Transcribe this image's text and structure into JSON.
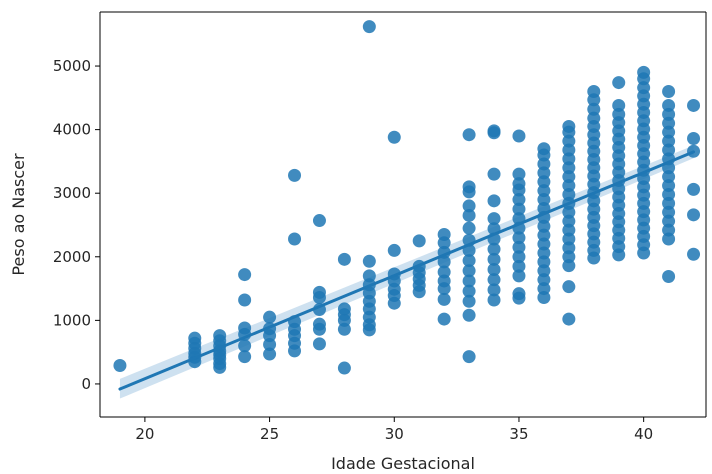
{
  "chart_data": {
    "type": "scatter",
    "title": "",
    "xlabel": "Idade Gestacional",
    "ylabel": "Peso ao Nascer",
    "xlim": [
      18.2,
      42.5
    ],
    "ylim": [
      -520,
      5850
    ],
    "xticks": [
      20,
      25,
      30,
      35,
      40
    ],
    "yticks": [
      0,
      1000,
      2000,
      3000,
      4000,
      5000
    ],
    "grid": false,
    "legend": "none",
    "point_color": "#1f77b4",
    "line_color": "#1f77b4",
    "band_color": "#a6c8e4",
    "regression": {
      "x": [
        19,
        42
      ],
      "y": [
        -80,
        3650
      ],
      "ci_low_at_min": -230,
      "ci_high_at_min": 80,
      "ci_low_at_max": 3550,
      "ci_high_at_max": 3750
    },
    "points": [
      [
        19,
        290
      ],
      [
        22,
        350
      ],
      [
        22,
        420
      ],
      [
        22,
        480
      ],
      [
        22,
        560
      ],
      [
        22,
        640
      ],
      [
        22,
        720
      ],
      [
        23,
        260
      ],
      [
        23,
        320
      ],
      [
        23,
        400
      ],
      [
        23,
        460
      ],
      [
        23,
        520
      ],
      [
        23,
        600
      ],
      [
        23,
        680
      ],
      [
        23,
        760
      ],
      [
        24,
        430
      ],
      [
        24,
        600
      ],
      [
        24,
        780
      ],
      [
        24,
        880
      ],
      [
        24,
        1320
      ],
      [
        24,
        1720
      ],
      [
        25,
        470
      ],
      [
        25,
        620
      ],
      [
        25,
        760
      ],
      [
        25,
        870
      ],
      [
        25,
        1050
      ],
      [
        26,
        520
      ],
      [
        26,
        640
      ],
      [
        26,
        760
      ],
      [
        26,
        860
      ],
      [
        26,
        980
      ],
      [
        26,
        2280
      ],
      [
        26,
        3280
      ],
      [
        27,
        630
      ],
      [
        27,
        860
      ],
      [
        27,
        940
      ],
      [
        27,
        1170
      ],
      [
        27,
        1360
      ],
      [
        27,
        1440
      ],
      [
        27,
        2570
      ],
      [
        28,
        250
      ],
      [
        28,
        860
      ],
      [
        28,
        1000
      ],
      [
        28,
        1090
      ],
      [
        28,
        1180
      ],
      [
        28,
        1960
      ],
      [
        29,
        850
      ],
      [
        29,
        930
      ],
      [
        29,
        1050
      ],
      [
        29,
        1180
      ],
      [
        29,
        1300
      ],
      [
        29,
        1430
      ],
      [
        29,
        1560
      ],
      [
        29,
        1700
      ],
      [
        29,
        1930
      ],
      [
        29,
        5620
      ],
      [
        30,
        1270
      ],
      [
        30,
        1390
      ],
      [
        30,
        1490
      ],
      [
        30,
        1620
      ],
      [
        30,
        1730
      ],
      [
        30,
        2100
      ],
      [
        30,
        3880
      ],
      [
        31,
        1450
      ],
      [
        31,
        1550
      ],
      [
        31,
        1650
      ],
      [
        31,
        1750
      ],
      [
        31,
        1850
      ],
      [
        31,
        2250
      ],
      [
        32,
        1020
      ],
      [
        32,
        1330
      ],
      [
        32,
        1500
      ],
      [
        32,
        1620
      ],
      [
        32,
        1760
      ],
      [
        32,
        1920
      ],
      [
        32,
        2070
      ],
      [
        32,
        2220
      ],
      [
        32,
        2350
      ],
      [
        33,
        430
      ],
      [
        33,
        1080
      ],
      [
        33,
        1300
      ],
      [
        33,
        1460
      ],
      [
        33,
        1620
      ],
      [
        33,
        1780
      ],
      [
        33,
        1940
      ],
      [
        33,
        2100
      ],
      [
        33,
        2260
      ],
      [
        33,
        2450
      ],
      [
        33,
        2650
      ],
      [
        33,
        2800
      ],
      [
        33,
        3020
      ],
      [
        33,
        3100
      ],
      [
        33,
        3920
      ],
      [
        34,
        1320
      ],
      [
        34,
        1480
      ],
      [
        34,
        1640
      ],
      [
        34,
        1800
      ],
      [
        34,
        1960
      ],
      [
        34,
        2120
      ],
      [
        34,
        2280
      ],
      [
        34,
        2440
      ],
      [
        34,
        2600
      ],
      [
        34,
        2880
      ],
      [
        34,
        3300
      ],
      [
        34,
        3950
      ],
      [
        34,
        3980
      ],
      [
        35,
        1350
      ],
      [
        35,
        1420
      ],
      [
        35,
        1700
      ],
      [
        35,
        1850
      ],
      [
        35,
        2000
      ],
      [
        35,
        2150
      ],
      [
        35,
        2300
      ],
      [
        35,
        2450
      ],
      [
        35,
        2600
      ],
      [
        35,
        2750
      ],
      [
        35,
        2900
      ],
      [
        35,
        3050
      ],
      [
        35,
        3150
      ],
      [
        35,
        3300
      ],
      [
        35,
        3900
      ],
      [
        36,
        1360
      ],
      [
        36,
        1500
      ],
      [
        36,
        1640
      ],
      [
        36,
        1780
      ],
      [
        36,
        1920
      ],
      [
        36,
        2060
      ],
      [
        36,
        2200
      ],
      [
        36,
        2340
      ],
      [
        36,
        2480
      ],
      [
        36,
        2620
      ],
      [
        36,
        2760
      ],
      [
        36,
        2900
      ],
      [
        36,
        3040
      ],
      [
        36,
        3180
      ],
      [
        36,
        3320
      ],
      [
        36,
        3460
      ],
      [
        36,
        3600
      ],
      [
        36,
        3700
      ],
      [
        37,
        1020
      ],
      [
        37,
        1530
      ],
      [
        37,
        1860
      ],
      [
        37,
        2000
      ],
      [
        37,
        2140
      ],
      [
        37,
        2280
      ],
      [
        37,
        2420
      ],
      [
        37,
        2560
      ],
      [
        37,
        2700
      ],
      [
        37,
        2840
      ],
      [
        37,
        2980
      ],
      [
        37,
        3120
      ],
      [
        37,
        3260
      ],
      [
        37,
        3400
      ],
      [
        37,
        3540
      ],
      [
        37,
        3680
      ],
      [
        37,
        3820
      ],
      [
        37,
        3960
      ],
      [
        37,
        4050
      ],
      [
        38,
        1980
      ],
      [
        38,
        2100
      ],
      [
        38,
        2230
      ],
      [
        38,
        2360
      ],
      [
        38,
        2490
      ],
      [
        38,
        2620
      ],
      [
        38,
        2750
      ],
      [
        38,
        2880
      ],
      [
        38,
        3010
      ],
      [
        38,
        3140
      ],
      [
        38,
        3270
      ],
      [
        38,
        3400
      ],
      [
        38,
        3530
      ],
      [
        38,
        3660
      ],
      [
        38,
        3790
      ],
      [
        38,
        3920
      ],
      [
        38,
        4050
      ],
      [
        38,
        4180
      ],
      [
        38,
        4320
      ],
      [
        38,
        4470
      ],
      [
        38,
        4600
      ],
      [
        39,
        2030
      ],
      [
        39,
        2160
      ],
      [
        39,
        2290
      ],
      [
        39,
        2420
      ],
      [
        39,
        2550
      ],
      [
        39,
        2680
      ],
      [
        39,
        2810
      ],
      [
        39,
        2940
      ],
      [
        39,
        3070
      ],
      [
        39,
        3200
      ],
      [
        39,
        3330
      ],
      [
        39,
        3460
      ],
      [
        39,
        3590
      ],
      [
        39,
        3720
      ],
      [
        39,
        3850
      ],
      [
        39,
        3980
      ],
      [
        39,
        4110
      ],
      [
        39,
        4240
      ],
      [
        39,
        4380
      ],
      [
        39,
        4740
      ],
      [
        40,
        2060
      ],
      [
        40,
        2190
      ],
      [
        40,
        2320
      ],
      [
        40,
        2450
      ],
      [
        40,
        2580
      ],
      [
        40,
        2710
      ],
      [
        40,
        2840
      ],
      [
        40,
        2970
      ],
      [
        40,
        3100
      ],
      [
        40,
        3230
      ],
      [
        40,
        3360
      ],
      [
        40,
        3490
      ],
      [
        40,
        3620
      ],
      [
        40,
        3750
      ],
      [
        40,
        3880
      ],
      [
        40,
        4010
      ],
      [
        40,
        4140
      ],
      [
        40,
        4270
      ],
      [
        40,
        4400
      ],
      [
        40,
        4530
      ],
      [
        40,
        4660
      ],
      [
        40,
        4800
      ],
      [
        40,
        4900
      ],
      [
        41,
        1690
      ],
      [
        41,
        2280
      ],
      [
        41,
        2420
      ],
      [
        41,
        2560
      ],
      [
        41,
        2700
      ],
      [
        41,
        2840
      ],
      [
        41,
        2980
      ],
      [
        41,
        3120
      ],
      [
        41,
        3260
      ],
      [
        41,
        3400
      ],
      [
        41,
        3540
      ],
      [
        41,
        3680
      ],
      [
        41,
        3820
      ],
      [
        41,
        3960
      ],
      [
        41,
        4100
      ],
      [
        41,
        4240
      ],
      [
        41,
        4380
      ],
      [
        41,
        4600
      ],
      [
        42,
        2040
      ],
      [
        42,
        2660
      ],
      [
        42,
        3060
      ],
      [
        42,
        3660
      ],
      [
        42,
        3860
      ],
      [
        42,
        4380
      ]
    ]
  }
}
